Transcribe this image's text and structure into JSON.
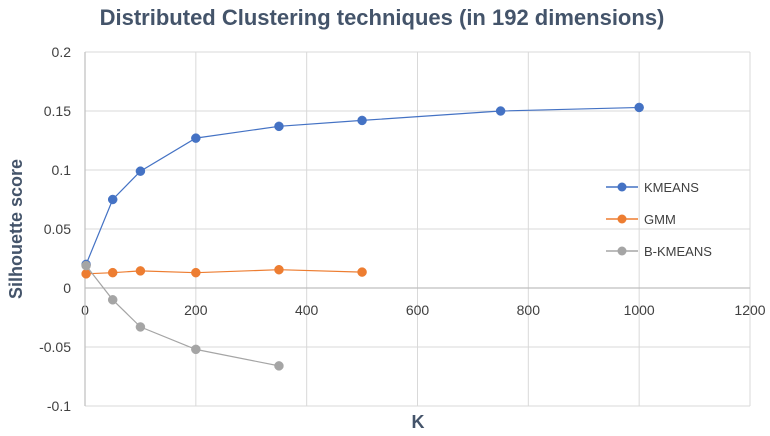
{
  "chart_data": {
    "type": "line",
    "title": "Distributed Clustering techniques (in 192 dimensions)",
    "xlabel": "K",
    "ylabel": "Silhouette score",
    "xlim": [
      0,
      1200
    ],
    "ylim": [
      -0.1,
      0.2
    ],
    "x_ticks": [
      0,
      200,
      400,
      600,
      800,
      1000,
      1200
    ],
    "x_tick_labels": [
      "0",
      "200",
      "400",
      "600",
      "800",
      "1000",
      "1200"
    ],
    "y_ticks": [
      -0.1,
      -0.05,
      0,
      0.05,
      0.1,
      0.15,
      0.2
    ],
    "y_tick_labels": [
      "-0.1",
      "-0.05",
      "0",
      "0.05",
      "0.1",
      "0.15",
      "0.2"
    ],
    "grid": true,
    "legend_position": "right",
    "series": [
      {
        "name": "KMEANS",
        "color": "#4472c4",
        "points": [
          [
            2,
            0.02
          ],
          [
            50,
            0.075
          ],
          [
            100,
            0.099
          ],
          [
            200,
            0.127
          ],
          [
            350,
            0.137
          ],
          [
            500,
            0.142
          ],
          [
            750,
            0.15
          ],
          [
            1000,
            0.153
          ]
        ]
      },
      {
        "name": "GMM",
        "color": "#ed7d31",
        "points": [
          [
            2,
            0.012
          ],
          [
            50,
            0.013
          ],
          [
            100,
            0.0145
          ],
          [
            200,
            0.013
          ],
          [
            350,
            0.0155
          ],
          [
            500,
            0.0135
          ]
        ]
      },
      {
        "name": "B-KMEANS",
        "color": "#a5a5a5",
        "points": [
          [
            2,
            0.019
          ],
          [
            50,
            -0.01
          ],
          [
            100,
            -0.033
          ],
          [
            200,
            -0.052
          ],
          [
            350,
            -0.066
          ]
        ]
      }
    ]
  }
}
